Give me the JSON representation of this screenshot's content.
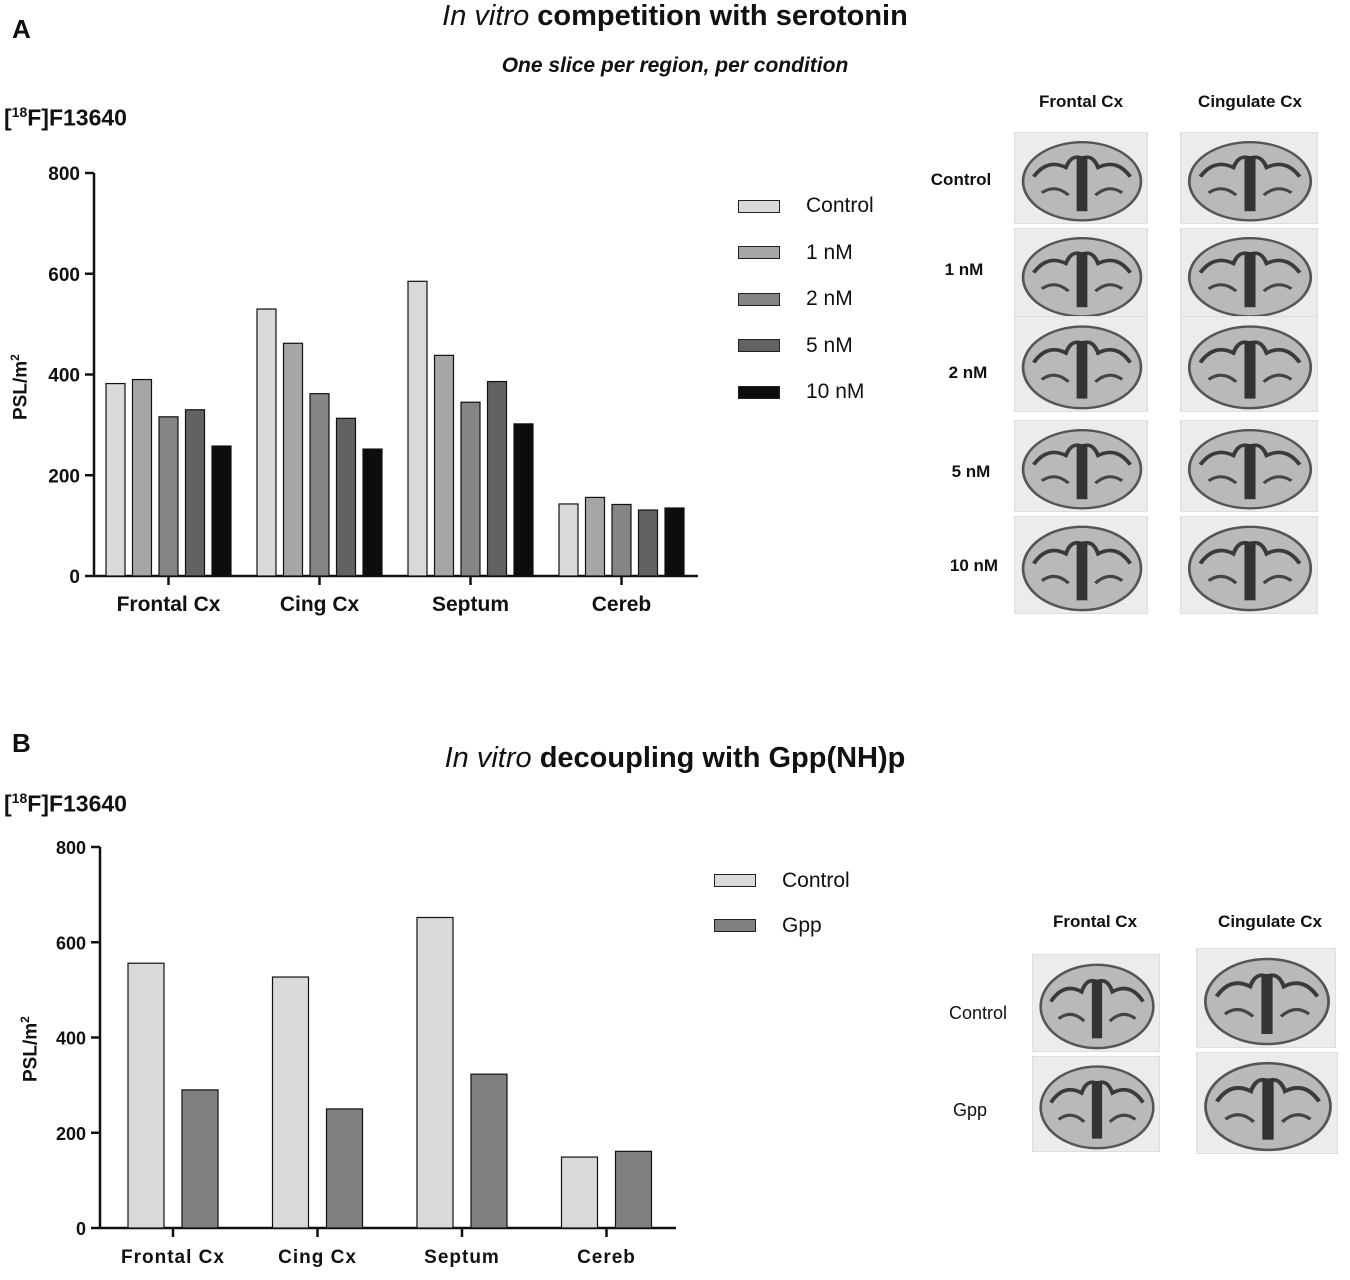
{
  "panelA": {
    "letter": "A",
    "title_italic": "In vitro",
    "title_rest": " competition with serotonin",
    "subtitle": "One slice per region, per condition",
    "tracer_pre": "[",
    "tracer_sup": "18",
    "tracer_post": "F]F13640",
    "ylabel_main": "PSL/m",
    "ylabel_sup": "2",
    "images": {
      "col1": "Frontal Cx",
      "col2": "Cingulate Cx",
      "rows": [
        "Control",
        "1 nM",
        "2 nM",
        "5 nM",
        "10 nM"
      ]
    }
  },
  "panelB": {
    "letter": "B",
    "title_italic": "In vitro",
    "title_rest": " decoupling with Gpp(NH)p",
    "tracer_pre": "[",
    "tracer_sup": "18",
    "tracer_post": "F]F13640",
    "ylabel_main": "PSL/m",
    "ylabel_sup": "2",
    "images": {
      "col1": "Frontal Cx",
      "col2": "Cingulate Cx",
      "rows": [
        "Control",
        "Gpp"
      ]
    }
  },
  "chart_data": [
    {
      "type": "bar",
      "title": "In vitro competition with serotonin",
      "ylabel": "PSL/m2",
      "ylim": [
        0,
        800
      ],
      "yticks": [
        0,
        200,
        400,
        600,
        800
      ],
      "categories": [
        "Frontal Cx",
        "Cing Cx",
        "Septum",
        "Cereb"
      ],
      "series": [
        {
          "name": "Control",
          "color": "#d9d9d9",
          "values": [
            382,
            530,
            585,
            143
          ]
        },
        {
          "name": "1 nM",
          "color": "#a6a6a6",
          "values": [
            390,
            462,
            438,
            156
          ]
        },
        {
          "name": "2 nM",
          "color": "#858585",
          "values": [
            316,
            362,
            345,
            142
          ]
        },
        {
          "name": "5 nM",
          "color": "#626262",
          "values": [
            330,
            313,
            386,
            131
          ]
        },
        {
          "name": "10 nM",
          "color": "#0d0d0d",
          "values": [
            258,
            252,
            302,
            135
          ]
        }
      ]
    },
    {
      "type": "bar",
      "title": "In vitro decoupling with Gpp(NH)p",
      "ylabel": "PSL/m2",
      "ylim": [
        0,
        800
      ],
      "yticks": [
        0,
        200,
        400,
        600,
        800
      ],
      "categories": [
        "Frontal Cx",
        "Cing Cx",
        "Septum",
        "Cereb"
      ],
      "series": [
        {
          "name": "Control",
          "color": "#d9d9d9",
          "values": [
            556,
            527,
            652,
            149
          ]
        },
        {
          "name": "Gpp",
          "color": "#808080",
          "values": [
            290,
            250,
            323,
            161
          ]
        }
      ]
    }
  ]
}
